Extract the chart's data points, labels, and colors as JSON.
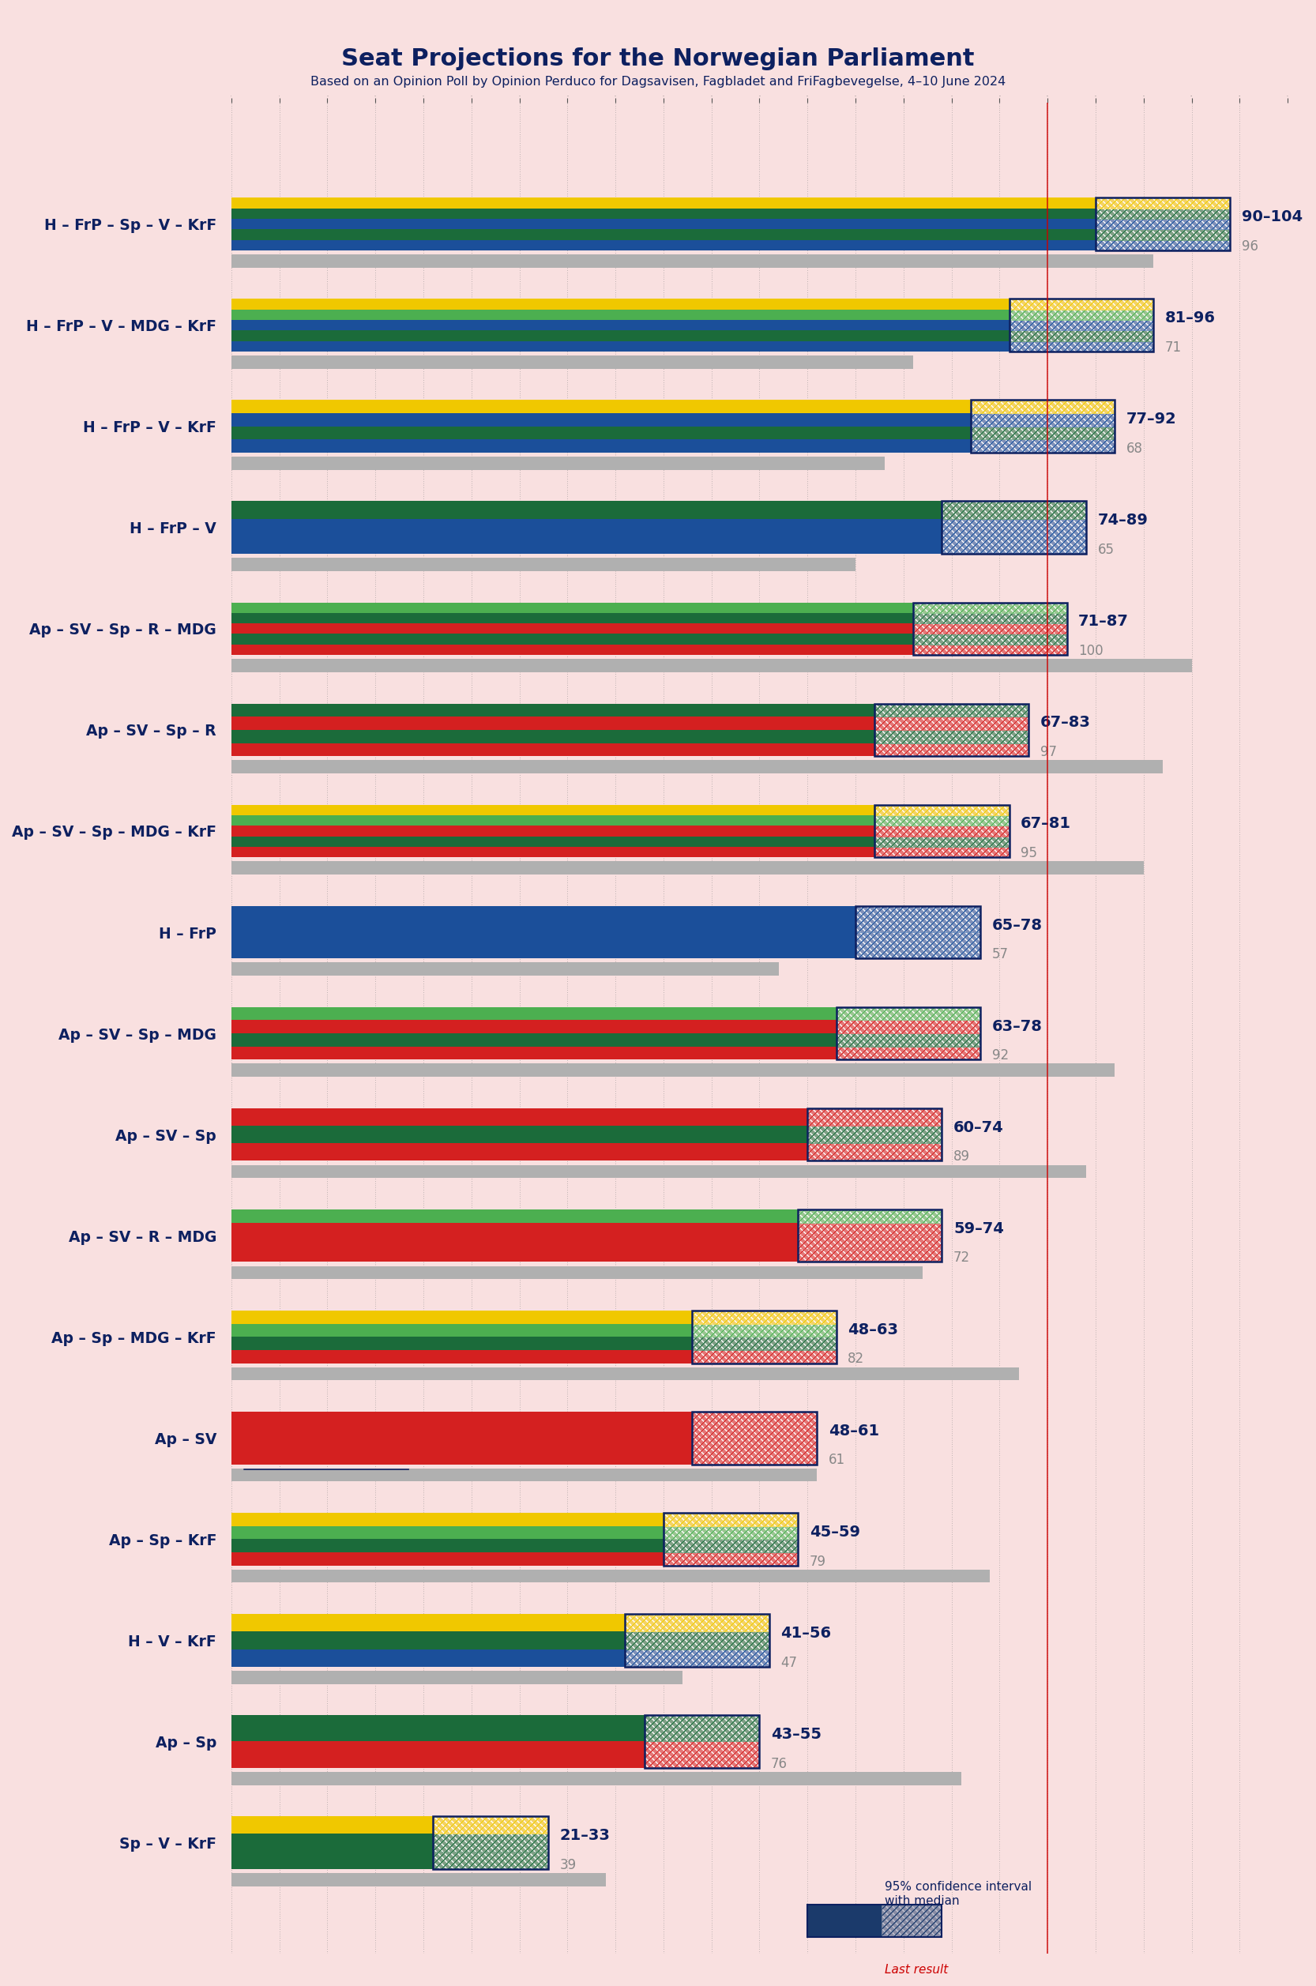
{
  "title": "Seat Projections for the Norwegian Parliament",
  "subtitle": "Based on an Opinion Poll by Opinion Perduco for Dagsavisen, Fagbladet and FriFagbevegelse, 4–10 June 2024",
  "background_color": "#f9e0e0",
  "title_color": "#0d2060",
  "subtitle_color": "#0d2060",
  "axis_min": 0,
  "axis_max": 110,
  "majority_line": 85,
  "coalitions": [
    {
      "label": "H – FrP – Sp – V – KrF",
      "ci_low": 90,
      "ci_high": 104,
      "median": 96,
      "last": 96,
      "segments": [
        "#1b4f9a",
        "#1b6b3a",
        "#1b4f9a",
        "#1b6b3a",
        "#f0c800"
      ],
      "underline": false
    },
    {
      "label": "H – FrP – V – MDG – KrF",
      "ci_low": 81,
      "ci_high": 96,
      "median": 71,
      "last": 71,
      "segments": [
        "#1b4f9a",
        "#1b6b3a",
        "#1b4f9a",
        "#4caf50",
        "#f0c800"
      ],
      "underline": false
    },
    {
      "label": "H – FrP – V – KrF",
      "ci_low": 77,
      "ci_high": 92,
      "median": 68,
      "last": 68,
      "segments": [
        "#1b4f9a",
        "#1b6b3a",
        "#1b4f9a",
        "#f0c800"
      ],
      "underline": false
    },
    {
      "label": "H – FrP – V",
      "ci_low": 74,
      "ci_high": 89,
      "median": 65,
      "last": 65,
      "segments": [
        "#1b4f9a",
        "#1b4f9a",
        "#1b6b3a"
      ],
      "underline": false
    },
    {
      "label": "Ap – SV – Sp – R – MDG",
      "ci_low": 71,
      "ci_high": 87,
      "median": 100,
      "last": 100,
      "segments": [
        "#d42020",
        "#1b6b3a",
        "#d42020",
        "#1b6b3a",
        "#4caf50"
      ],
      "underline": false
    },
    {
      "label": "Ap – SV – Sp – R",
      "ci_low": 67,
      "ci_high": 83,
      "median": 97,
      "last": 97,
      "segments": [
        "#d42020",
        "#1b6b3a",
        "#d42020",
        "#1b6b3a"
      ],
      "underline": false
    },
    {
      "label": "Ap – SV – Sp – MDG – KrF",
      "ci_low": 67,
      "ci_high": 81,
      "median": 95,
      "last": 95,
      "segments": [
        "#d42020",
        "#1b6b3a",
        "#d42020",
        "#4caf50",
        "#f0c800"
      ],
      "underline": false
    },
    {
      "label": "H – FrP",
      "ci_low": 65,
      "ci_high": 78,
      "median": 57,
      "last": 57,
      "segments": [
        "#1b4f9a",
        "#1b4f9a"
      ],
      "underline": false
    },
    {
      "label": "Ap – SV – Sp – MDG",
      "ci_low": 63,
      "ci_high": 78,
      "median": 92,
      "last": 92,
      "segments": [
        "#d42020",
        "#1b6b3a",
        "#d42020",
        "#4caf50"
      ],
      "underline": false
    },
    {
      "label": "Ap – SV – Sp",
      "ci_low": 60,
      "ci_high": 74,
      "median": 89,
      "last": 89,
      "segments": [
        "#d42020",
        "#1b6b3a",
        "#d42020"
      ],
      "underline": false
    },
    {
      "label": "Ap – SV – R – MDG",
      "ci_low": 59,
      "ci_high": 74,
      "median": 72,
      "last": 72,
      "segments": [
        "#d42020",
        "#d42020",
        "#d42020",
        "#4caf50"
      ],
      "underline": false
    },
    {
      "label": "Ap – Sp – MDG – KrF",
      "ci_low": 48,
      "ci_high": 63,
      "median": 82,
      "last": 82,
      "segments": [
        "#d42020",
        "#1b6b3a",
        "#4caf50",
        "#f0c800"
      ],
      "underline": false
    },
    {
      "label": "Ap – SV",
      "ci_low": 48,
      "ci_high": 61,
      "median": 61,
      "last": 61,
      "segments": [
        "#d42020",
        "#d42020"
      ],
      "underline": true
    },
    {
      "label": "Ap – Sp – KrF",
      "ci_low": 45,
      "ci_high": 59,
      "median": 79,
      "last": 79,
      "segments": [
        "#d42020",
        "#1b6b3a",
        "#4caf50",
        "#f0c800"
      ],
      "underline": false
    },
    {
      "label": "H – V – KrF",
      "ci_low": 41,
      "ci_high": 56,
      "median": 47,
      "last": 47,
      "segments": [
        "#1b4f9a",
        "#1b6b3a",
        "#f0c800"
      ],
      "underline": false
    },
    {
      "label": "Ap – Sp",
      "ci_low": 43,
      "ci_high": 55,
      "median": 76,
      "last": 76,
      "segments": [
        "#d42020",
        "#1b6b3a"
      ],
      "underline": false
    },
    {
      "label": "Sp – V – KrF",
      "ci_low": 21,
      "ci_high": 33,
      "median": 39,
      "last": 39,
      "segments": [
        "#1b6b3a",
        "#1b6b3a",
        "#f0c800"
      ],
      "underline": false
    }
  ]
}
